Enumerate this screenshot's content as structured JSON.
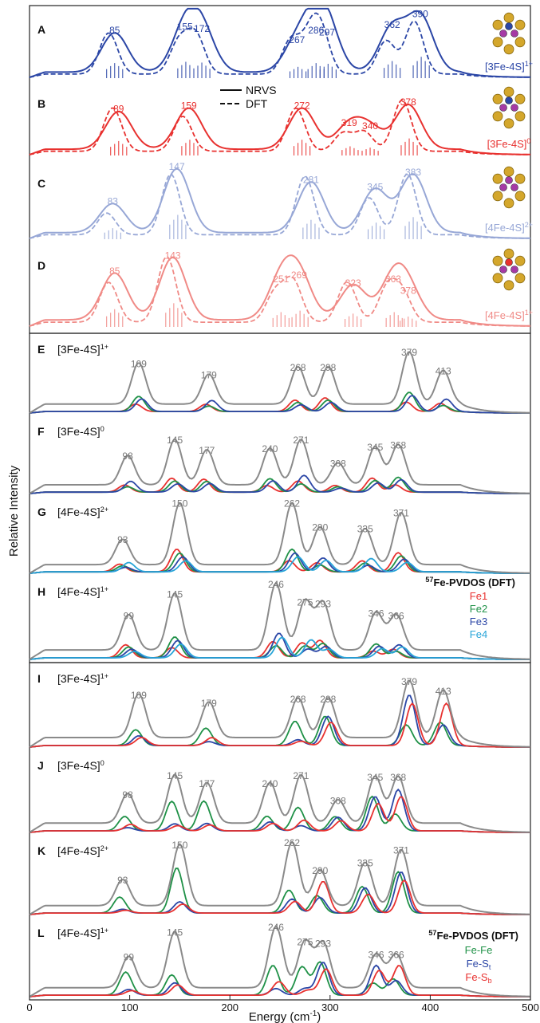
{
  "figure": {
    "ylabel": "Relative Intensity",
    "xlabel_main": "Energy (cm",
    "xlabel_sup": "-1",
    "xlabel_close": ")",
    "xticks": [
      0,
      100,
      200,
      300,
      400,
      500
    ],
    "xlim": [
      0,
      500
    ]
  },
  "legend_top": {
    "solid": "NRVS",
    "dashed": "DFT"
  },
  "legend_fe": {
    "title_sup": "57",
    "title": "Fe-PVDOS (DFT)",
    "items": [
      {
        "label": "Fe1",
        "color": "#e8312f"
      },
      {
        "label": "Fe2",
        "color": "#1f9147"
      },
      {
        "label": "Fe3",
        "color": "#2b46a6"
      },
      {
        "label": "Fe4",
        "color": "#27a4d8"
      }
    ]
  },
  "legend_bond": {
    "title_sup": "57",
    "title": "Fe-PVDOS (DFT)",
    "items": [
      {
        "label": "Fe-Fe",
        "sub": "",
        "color": "#1f9147"
      },
      {
        "label": "Fe-S",
        "sub": "t",
        "color": "#2b46a6"
      },
      {
        "label": "Fe-S",
        "sub": "b",
        "color": "#e8312f"
      }
    ]
  },
  "chart_data": [
    {
      "type": "line",
      "panel": "A",
      "cluster_label": "[3Fe-4S]",
      "charge": "1+",
      "color": "#2b46a6",
      "series": [
        {
          "name": "NRVS",
          "style": "solid"
        },
        {
          "name": "DFT",
          "style": "dashed"
        }
      ],
      "peaks": [
        {
          "label": "85",
          "x": 85,
          "h": 0.6
        },
        {
          "label": "155",
          "x": 155,
          "h": 0.65
        },
        {
          "label": "172",
          "x": 172,
          "h": 0.62
        },
        {
          "label": "267",
          "x": 267,
          "h": 0.45
        },
        {
          "label": "286",
          "x": 286,
          "h": 0.6
        },
        {
          "label": "297",
          "x": 297,
          "h": 0.57
        },
        {
          "label": "362",
          "x": 362,
          "h": 0.68
        },
        {
          "label": "390",
          "x": 390,
          "h": 0.85
        }
      ]
    },
    {
      "type": "line",
      "panel": "B",
      "cluster_label": "[3Fe-4S]",
      "charge": "0",
      "color": "#e8312f",
      "series": [
        {
          "name": "NRVS",
          "style": "solid"
        },
        {
          "name": "DFT",
          "style": "dashed"
        }
      ],
      "peaks": [
        {
          "label": "89",
          "x": 89,
          "h": 0.55
        },
        {
          "label": "159",
          "x": 159,
          "h": 0.6
        },
        {
          "label": "272",
          "x": 272,
          "h": 0.6
        },
        {
          "label": "319",
          "x": 319,
          "h": 0.35
        },
        {
          "label": "340",
          "x": 340,
          "h": 0.3
        },
        {
          "label": "378",
          "x": 378,
          "h": 0.65
        }
      ]
    },
    {
      "type": "line",
      "panel": "C",
      "cluster_label": "[4Fe-4S]",
      "charge": "2+",
      "color": "#97a7d6",
      "series": [
        {
          "name": "NRVS",
          "style": "solid"
        },
        {
          "name": "DFT",
          "style": "dashed"
        }
      ],
      "peaks": [
        {
          "label": "83",
          "x": 83,
          "h": 0.4
        },
        {
          "label": "147",
          "x": 147,
          "h": 0.88
        },
        {
          "label": "281",
          "x": 281,
          "h": 0.7
        },
        {
          "label": "345",
          "x": 345,
          "h": 0.6
        },
        {
          "label": "383",
          "x": 383,
          "h": 0.8
        }
      ]
    },
    {
      "type": "line",
      "panel": "D",
      "cluster_label": "[4Fe-4S]",
      "charge": "1+",
      "color": "#f08a86",
      "series": [
        {
          "name": "NRVS",
          "style": "solid"
        },
        {
          "name": "DFT",
          "style": "dashed"
        }
      ],
      "peaks": [
        {
          "label": "85",
          "x": 85,
          "h": 0.6
        },
        {
          "label": "143",
          "x": 143,
          "h": 0.8
        },
        {
          "label": "251",
          "x": 251,
          "h": 0.5
        },
        {
          "label": "269",
          "x": 269,
          "h": 0.55
        },
        {
          "label": "323",
          "x": 323,
          "h": 0.45
        },
        {
          "label": "363",
          "x": 363,
          "h": 0.5
        },
        {
          "label": "378",
          "x": 378,
          "h": 0.35
        }
      ]
    },
    {
      "type": "line",
      "panel": "E",
      "cluster_label": "[3Fe-4S]",
      "charge": "1+",
      "series": [
        {
          "name": "Total",
          "color": "#8a8a8a"
        },
        {
          "name": "Fe1",
          "color": "#e8312f"
        },
        {
          "name": "Fe2",
          "color": "#1f9147"
        },
        {
          "name": "Fe3",
          "color": "#2b46a6"
        }
      ],
      "peaks": [
        {
          "label": "109",
          "x": 109,
          "h": 0.55
        },
        {
          "label": "179",
          "x": 179,
          "h": 0.4
        },
        {
          "label": "268",
          "x": 268,
          "h": 0.5
        },
        {
          "label": "298",
          "x": 298,
          "h": 0.5
        },
        {
          "label": "379",
          "x": 379,
          "h": 0.7
        },
        {
          "label": "413",
          "x": 413,
          "h": 0.45
        }
      ]
    },
    {
      "type": "line",
      "panel": "F",
      "cluster_label": "[3Fe-4S]",
      "charge": "0",
      "series": [
        {
          "name": "Total",
          "color": "#8a8a8a"
        },
        {
          "name": "Fe1",
          "color": "#e8312f"
        },
        {
          "name": "Fe2",
          "color": "#1f9147"
        },
        {
          "name": "Fe3",
          "color": "#2b46a6"
        }
      ],
      "peaks": [
        {
          "label": "98",
          "x": 98,
          "h": 0.4
        },
        {
          "label": "145",
          "x": 145,
          "h": 0.62
        },
        {
          "label": "177",
          "x": 177,
          "h": 0.48
        },
        {
          "label": "240",
          "x": 240,
          "h": 0.5
        },
        {
          "label": "271",
          "x": 271,
          "h": 0.62
        },
        {
          "label": "308",
          "x": 308,
          "h": 0.3
        },
        {
          "label": "345",
          "x": 345,
          "h": 0.52
        },
        {
          "label": "368",
          "x": 368,
          "h": 0.55
        }
      ]
    },
    {
      "type": "line",
      "panel": "G",
      "cluster_label": "[4Fe-4S]",
      "charge": "2+",
      "series": [
        {
          "name": "Total",
          "color": "#8a8a8a"
        },
        {
          "name": "Fe1",
          "color": "#e8312f"
        },
        {
          "name": "Fe2",
          "color": "#1f9147"
        },
        {
          "name": "Fe3",
          "color": "#2b46a6"
        },
        {
          "name": "Fe4",
          "color": "#27a4d8"
        }
      ],
      "peaks": [
        {
          "label": "93",
          "x": 93,
          "h": 0.35
        },
        {
          "label": "150",
          "x": 150,
          "h": 0.85
        },
        {
          "label": "262",
          "x": 262,
          "h": 0.85
        },
        {
          "label": "290",
          "x": 290,
          "h": 0.52
        },
        {
          "label": "335",
          "x": 335,
          "h": 0.5
        },
        {
          "label": "371",
          "x": 371,
          "h": 0.72
        }
      ]
    },
    {
      "type": "line",
      "panel": "H",
      "cluster_label": "[4Fe-4S]",
      "charge": "1+",
      "series": [
        {
          "name": "Total",
          "color": "#8a8a8a"
        },
        {
          "name": "Fe1",
          "color": "#e8312f"
        },
        {
          "name": "Fe2",
          "color": "#1f9147"
        },
        {
          "name": "Fe3",
          "color": "#2b46a6"
        },
        {
          "name": "Fe4",
          "color": "#27a4d8"
        }
      ],
      "peaks": [
        {
          "label": "99",
          "x": 99,
          "h": 0.45
        },
        {
          "label": "145",
          "x": 145,
          "h": 0.72
        },
        {
          "label": "246",
          "x": 246,
          "h": 0.85
        },
        {
          "label": "275",
          "x": 275,
          "h": 0.62
        },
        {
          "label": "293",
          "x": 293,
          "h": 0.6
        },
        {
          "label": "346",
          "x": 346,
          "h": 0.48
        },
        {
          "label": "366",
          "x": 366,
          "h": 0.45
        }
      ]
    },
    {
      "type": "line",
      "panel": "I",
      "cluster_label": "[3Fe-4S]",
      "charge": "1+",
      "series": [
        {
          "name": "Total",
          "color": "#8a8a8a"
        },
        {
          "name": "Fe-Fe",
          "color": "#1f9147"
        },
        {
          "name": "Fe-St",
          "color": "#2b46a6"
        },
        {
          "name": "Fe-Sb",
          "color": "#e8312f"
        }
      ],
      "peaks": [
        {
          "label": "109",
          "x": 109,
          "h": 0.55
        },
        {
          "label": "179",
          "x": 179,
          "h": 0.45
        },
        {
          "label": "268",
          "x": 268,
          "h": 0.5
        },
        {
          "label": "298",
          "x": 298,
          "h": 0.5
        },
        {
          "label": "379",
          "x": 379,
          "h": 0.72
        },
        {
          "label": "413",
          "x": 413,
          "h": 0.6
        }
      ]
    },
    {
      "type": "line",
      "panel": "J",
      "cluster_label": "[3Fe-4S]",
      "charge": "0",
      "series": [
        {
          "name": "Total",
          "color": "#8a8a8a"
        },
        {
          "name": "Fe-Fe",
          "color": "#1f9147"
        },
        {
          "name": "Fe-St",
          "color": "#2b46a6"
        },
        {
          "name": "Fe-Sb",
          "color": "#e8312f"
        }
      ],
      "peaks": [
        {
          "label": "98",
          "x": 98,
          "h": 0.38
        },
        {
          "label": "145",
          "x": 145,
          "h": 0.62
        },
        {
          "label": "177",
          "x": 177,
          "h": 0.52
        },
        {
          "label": "240",
          "x": 240,
          "h": 0.52
        },
        {
          "label": "271",
          "x": 271,
          "h": 0.62
        },
        {
          "label": "308",
          "x": 308,
          "h": 0.3
        },
        {
          "label": "345",
          "x": 345,
          "h": 0.6
        },
        {
          "label": "368",
          "x": 368,
          "h": 0.6
        }
      ]
    },
    {
      "type": "line",
      "panel": "K",
      "cluster_label": "[4Fe-4S]",
      "charge": "2+",
      "series": [
        {
          "name": "Total",
          "color": "#8a8a8a"
        },
        {
          "name": "Fe-Fe",
          "color": "#1f9147"
        },
        {
          "name": "Fe-St",
          "color": "#2b46a6"
        },
        {
          "name": "Fe-Sb",
          "color": "#e8312f"
        }
      ],
      "peaks": [
        {
          "label": "93",
          "x": 93,
          "h": 0.35
        },
        {
          "label": "150",
          "x": 150,
          "h": 0.82
        },
        {
          "label": "262",
          "x": 262,
          "h": 0.85
        },
        {
          "label": "290",
          "x": 290,
          "h": 0.48
        },
        {
          "label": "335",
          "x": 335,
          "h": 0.58
        },
        {
          "label": "371",
          "x": 371,
          "h": 0.75
        }
      ]
    },
    {
      "type": "line",
      "panel": "L",
      "cluster_label": "[4Fe-4S]",
      "charge": "1+",
      "series": [
        {
          "name": "Total",
          "color": "#8a8a8a"
        },
        {
          "name": "Fe-Fe",
          "color": "#1f9147"
        },
        {
          "name": "Fe-St",
          "color": "#2b46a6"
        },
        {
          "name": "Fe-Sb",
          "color": "#e8312f"
        }
      ],
      "peaks": [
        {
          "label": "99",
          "x": 99,
          "h": 0.42
        },
        {
          "label": "145",
          "x": 145,
          "h": 0.75
        },
        {
          "label": "246",
          "x": 246,
          "h": 0.82
        },
        {
          "label": "275",
          "x": 275,
          "h": 0.62
        },
        {
          "label": "293",
          "x": 293,
          "h": 0.6
        },
        {
          "label": "346",
          "x": 346,
          "h": 0.45
        },
        {
          "label": "366",
          "x": 366,
          "h": 0.45
        }
      ]
    }
  ]
}
